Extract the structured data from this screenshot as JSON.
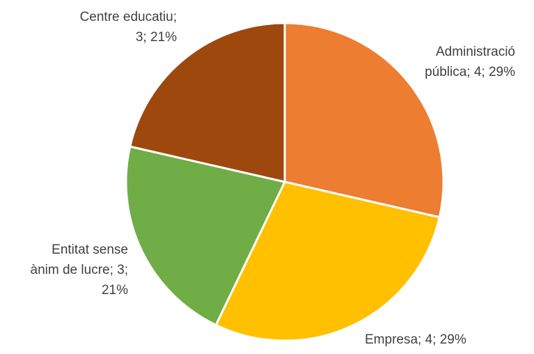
{
  "chart_data": {
    "type": "pie",
    "title": "",
    "categories": [
      "Administració pública",
      "Empresa",
      "Entitat sense ànim de lucre",
      "Centre educatiu"
    ],
    "values": [
      4,
      4,
      3,
      3
    ],
    "percentages": [
      29,
      29,
      21,
      21
    ],
    "colors": [
      "#ED7D31",
      "#FFC000",
      "#70AD47",
      "#9E480E"
    ],
    "start_angle_deg": 0,
    "direction": "clockwise",
    "labels": [
      {
        "lines": [
          "Administració",
          "pública; 4; 29%"
        ],
        "anchor": "end"
      },
      {
        "lines": [
          "Empresa; 4; 29%"
        ],
        "anchor": "start"
      },
      {
        "lines": [
          "Entitat sense",
          "ànim de lucre; 3;",
          "21%"
        ],
        "anchor": "end"
      },
      {
        "lines": [
          "Centre educatiu;",
          "3; 21%"
        ],
        "anchor": "end"
      }
    ],
    "legend": "none"
  }
}
